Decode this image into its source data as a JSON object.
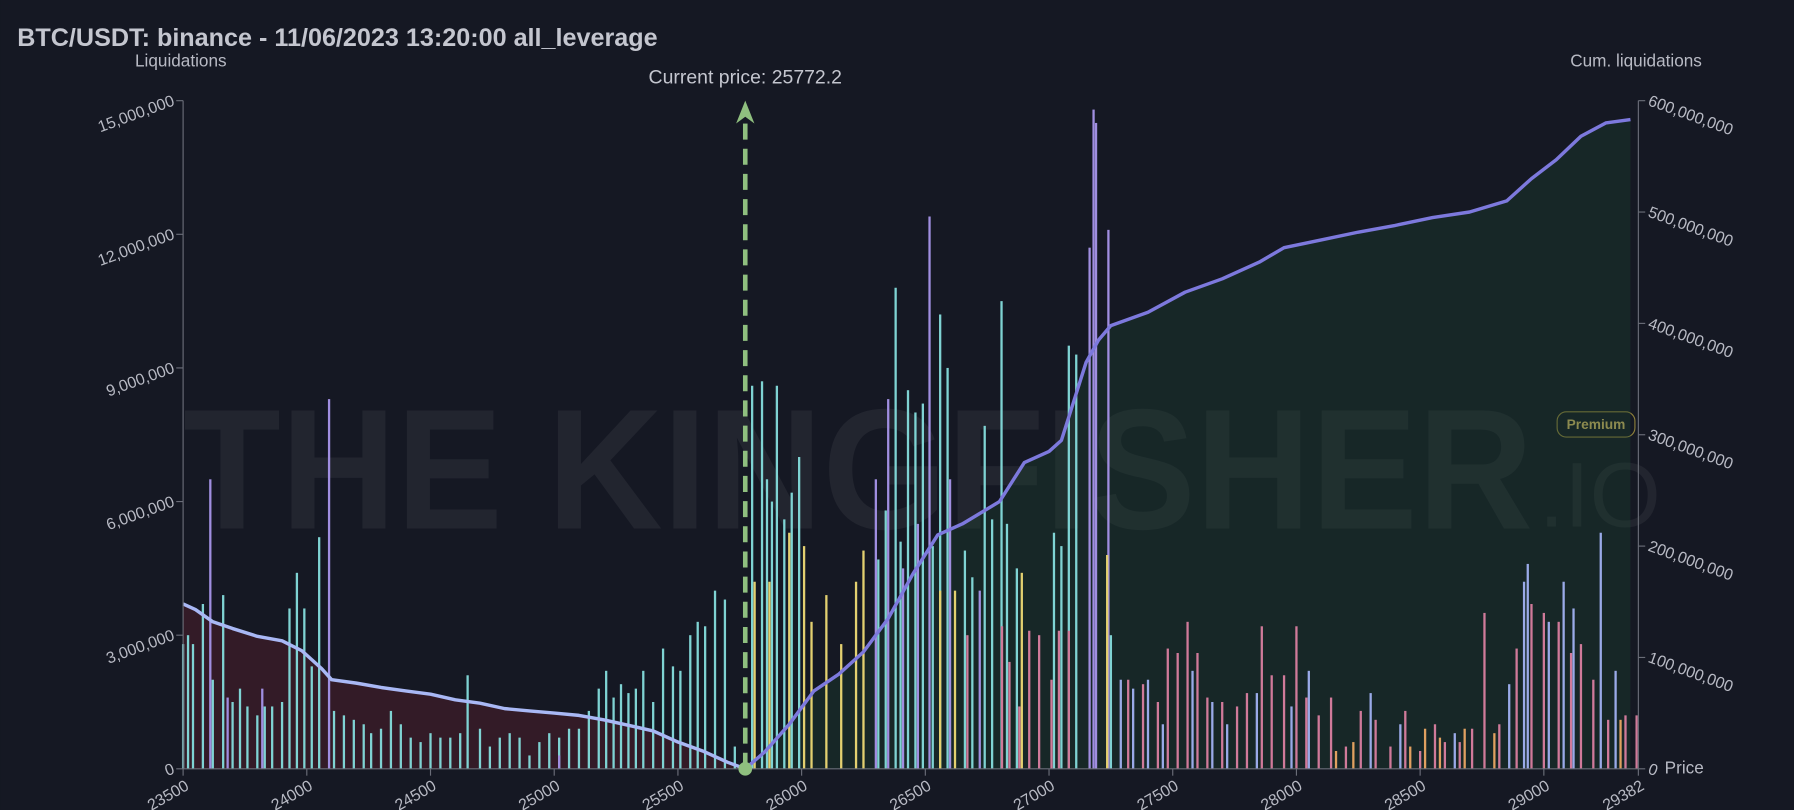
{
  "chart_data": {
    "type": "bar",
    "title": "BTC/USDT: binance - 11/06/2023 13:20:00 all_leverage",
    "ylabel": "Liquidations",
    "y2label": "Cum. liquidations",
    "xlabel": "Price",
    "watermark": "THE KINGFISHER",
    "watermark_suffix": ".IO",
    "badge": "Premium",
    "current_price": {
      "value": 25772.2,
      "label": "Current price: 25772.2"
    },
    "current_price_color": "#8fbf7f",
    "xlim": [
      23500,
      29382
    ],
    "xticks": [
      23500,
      24000,
      24500,
      25000,
      25500,
      26000,
      26500,
      27000,
      27500,
      28000,
      28500,
      29000,
      29382
    ],
    "ylim": [
      0,
      15000000
    ],
    "yticks": [
      0,
      {
        "value": 3000000,
        "label": "3,000,000"
      },
      {
        "value": 6000000,
        "label": "6,000,000"
      },
      {
        "value": 9000000,
        "label": "9,000,000"
      },
      {
        "value": 12000000,
        "label": "12,000,000"
      },
      {
        "value": 15000000,
        "label": "15,000,000"
      }
    ],
    "y2lim": [
      0,
      600000000
    ],
    "y2ticks": [
      0,
      {
        "value": 100000000,
        "label": "100,000,000"
      },
      {
        "value": 200000000,
        "label": "200,000,000"
      },
      {
        "value": 300000000,
        "label": "300,000,000"
      },
      {
        "value": 400000000,
        "label": "400,000,000"
      },
      {
        "value": 500000000,
        "label": "500,000,000"
      },
      {
        "value": 600000000,
        "label": "600,000,000"
      }
    ],
    "series": [
      {
        "color": "#7fd3d3",
        "x": [
          23500,
          23520,
          23540,
          23580,
          23620,
          23662,
          23700,
          23730,
          23760,
          23800,
          23830,
          23860,
          23900,
          23930,
          23960,
          23990,
          24020,
          24050,
          24110,
          24150,
          24190,
          24230,
          24260,
          24300,
          24340,
          24380,
          24420,
          24460,
          24500,
          24540,
          24580,
          24620,
          24650,
          24700,
          24740,
          24780,
          24820,
          24860,
          24900,
          24940,
          24980,
          25020,
          25060,
          25100,
          25140,
          25180,
          25210,
          25240,
          25270,
          25300,
          25330,
          25360,
          25400,
          25440,
          25480,
          25510,
          25550,
          25580,
          25610,
          25650,
          25690,
          25730,
          25800,
          25840,
          25860,
          25880,
          25900,
          25930,
          25960,
          25990,
          26310,
          26340,
          26380,
          26400,
          26430,
          26460,
          26490,
          26530,
          26560,
          26590,
          26660,
          26690,
          26740,
          26770,
          26808,
          26830,
          26870,
          27020,
          27050,
          27080,
          27110,
          27250
        ],
        "values": [
          2800000,
          3000000,
          2800000,
          3700000,
          2000000,
          3900000,
          1500000,
          1800000,
          1400000,
          1200000,
          1400000,
          1400000,
          1500000,
          3600000,
          4400000,
          3600000,
          2300000,
          5200000,
          1300000,
          1200000,
          1100000,
          1000000,
          800000,
          900000,
          1300000,
          1000000,
          700000,
          600000,
          800000,
          700000,
          700000,
          800000,
          2100000,
          900000,
          500000,
          700000,
          800000,
          700000,
          300000,
          600000,
          800000,
          700000,
          900000,
          900000,
          1300000,
          1800000,
          2200000,
          1600000,
          1900000,
          1700000,
          1800000,
          2200000,
          1500000,
          2700000,
          2300000,
          2200000,
          3000000,
          3300000,
          3200000,
          4000000,
          3800000,
          500000,
          8600000,
          8700000,
          6500000,
          6000000,
          8600000,
          5600000,
          6200000,
          7000000,
          4700000,
          5800000,
          10800000,
          5100000,
          8500000,
          8000000,
          8200000,
          5000000,
          10200000,
          9000000,
          4900000,
          4300000,
          7700000,
          5600000,
          10500000,
          5500000,
          4500000,
          5300000,
          5000000,
          9500000,
          9300000,
          3000000
        ]
      },
      {
        "color": "#a08ee0",
        "x": [
          23610,
          23680,
          23820,
          24090,
          25020,
          26300,
          26350,
          26410,
          26470,
          26517,
          26600,
          26720,
          27164,
          27180,
          27190,
          27240
        ],
        "values": [
          6500000,
          1600000,
          1800000,
          8300000,
          300000,
          6500000,
          8300000,
          4500000,
          5500000,
          12400000,
          6500000,
          4000000,
          11700000,
          14800000,
          14500000,
          12100000
        ]
      },
      {
        "color": "#e3d070",
        "x": [
          25810,
          25870,
          25950,
          26010,
          26040,
          26100,
          26160,
          26220,
          26250,
          26560,
          26620,
          26890,
          27235
        ],
        "values": [
          4200000,
          4200000,
          5300000,
          5000000,
          3300000,
          3900000,
          2800000,
          4200000,
          4900000,
          4000000,
          4000000,
          4400000,
          4800000
        ]
      },
      {
        "color": "#d07a9a",
        "x": [
          26670,
          26810,
          26840,
          26880,
          26920,
          26960,
          27010,
          27040,
          27080,
          27320,
          27380,
          27440,
          27480,
          27520,
          27560,
          27600,
          27640,
          27700,
          27760,
          27800,
          27860,
          27900,
          27950,
          28000,
          28040,
          28090,
          28140,
          28200,
          28260,
          28320,
          28380,
          28440,
          28500,
          28560,
          28600,
          28660,
          28710,
          28760,
          28820,
          28890,
          28950,
          29000,
          29060,
          29110,
          29150,
          29200,
          29260,
          29330,
          29375
        ],
        "values": [
          3000000,
          3200000,
          2400000,
          1400000,
          3100000,
          3000000,
          2000000,
          3100000,
          3100000,
          2000000,
          1900000,
          1500000,
          2700000,
          2600000,
          3300000,
          2600000,
          1600000,
          1500000,
          1400000,
          1700000,
          3200000,
          2100000,
          2100000,
          3200000,
          1600000,
          1200000,
          1600000,
          500000,
          1300000,
          1100000,
          500000,
          1300000,
          400000,
          1000000,
          600000,
          600000,
          900000,
          3500000,
          1000000,
          2700000,
          3700000,
          3500000,
          3300000,
          2600000,
          2800000,
          2000000,
          1100000,
          1200000,
          1200000
        ]
      },
      {
        "color": "#9aaae8",
        "x": [
          27290,
          27340,
          27400,
          27460,
          27580,
          27660,
          27720,
          27840,
          27980,
          28050,
          28300,
          28420,
          28640,
          28860,
          28920,
          28935,
          29020,
          29080,
          29120,
          29230,
          29290
        ],
        "values": [
          2000000,
          1800000,
          2000000,
          1000000,
          2200000,
          1500000,
          1000000,
          1700000,
          1400000,
          2200000,
          1700000,
          1000000,
          800000,
          1900000,
          4200000,
          4600000,
          3300000,
          4200000,
          3600000,
          5300000,
          2200000
        ]
      },
      {
        "color": "#e0a060",
        "x": [
          28160,
          28230,
          28460,
          28520,
          28580,
          28680,
          28800,
          29310
        ],
        "values": [
          400000,
          600000,
          500000,
          900000,
          700000,
          900000,
          800000,
          1100000
        ]
      },
      {
        "type": "line",
        "axis": "y2",
        "color": "#a9b8f5",
        "fill": "rgba(110,35,50,0.35)",
        "x": [
          23500,
          23550,
          23620,
          23700,
          23800,
          23900,
          23980,
          24060,
          24100,
          24200,
          24300,
          24400,
          24500,
          24600,
          24700,
          24800,
          24900,
          25000,
          25100,
          25200,
          25300,
          25400,
          25500,
          25600,
          25700,
          25772
        ],
        "values": [
          148000000,
          143000000,
          132000000,
          126000000,
          119000000,
          115000000,
          106000000,
          90000000,
          80000000,
          77000000,
          73000000,
          70000000,
          67000000,
          62000000,
          59000000,
          54000000,
          52000000,
          50000000,
          48000000,
          44000000,
          39000000,
          34000000,
          24000000,
          16000000,
          6000000,
          0
        ]
      },
      {
        "type": "line",
        "axis": "y2",
        "color": "#7d79dd",
        "fill": "rgba(30,70,50,0.35)",
        "x": [
          25772,
          25850,
          25950,
          26050,
          26150,
          26250,
          26350,
          26450,
          26550,
          26650,
          26800,
          26900,
          27000,
          27050,
          27100,
          27150,
          27200,
          27250,
          27400,
          27550,
          27700,
          27850,
          27950,
          28100,
          28250,
          28400,
          28550,
          28700,
          28850,
          28950,
          29050,
          29150,
          29250,
          29350
        ],
        "values": [
          0,
          15000000,
          40000000,
          70000000,
          85000000,
          105000000,
          135000000,
          175000000,
          210000000,
          220000000,
          240000000,
          275000000,
          285000000,
          295000000,
          330000000,
          365000000,
          385000000,
          398000000,
          410000000,
          428000000,
          440000000,
          455000000,
          468000000,
          475000000,
          482000000,
          488000000,
          495000000,
          500000000,
          510000000,
          530000000,
          547000000,
          568000000,
          580000000,
          583000000
        ]
      }
    ]
  }
}
